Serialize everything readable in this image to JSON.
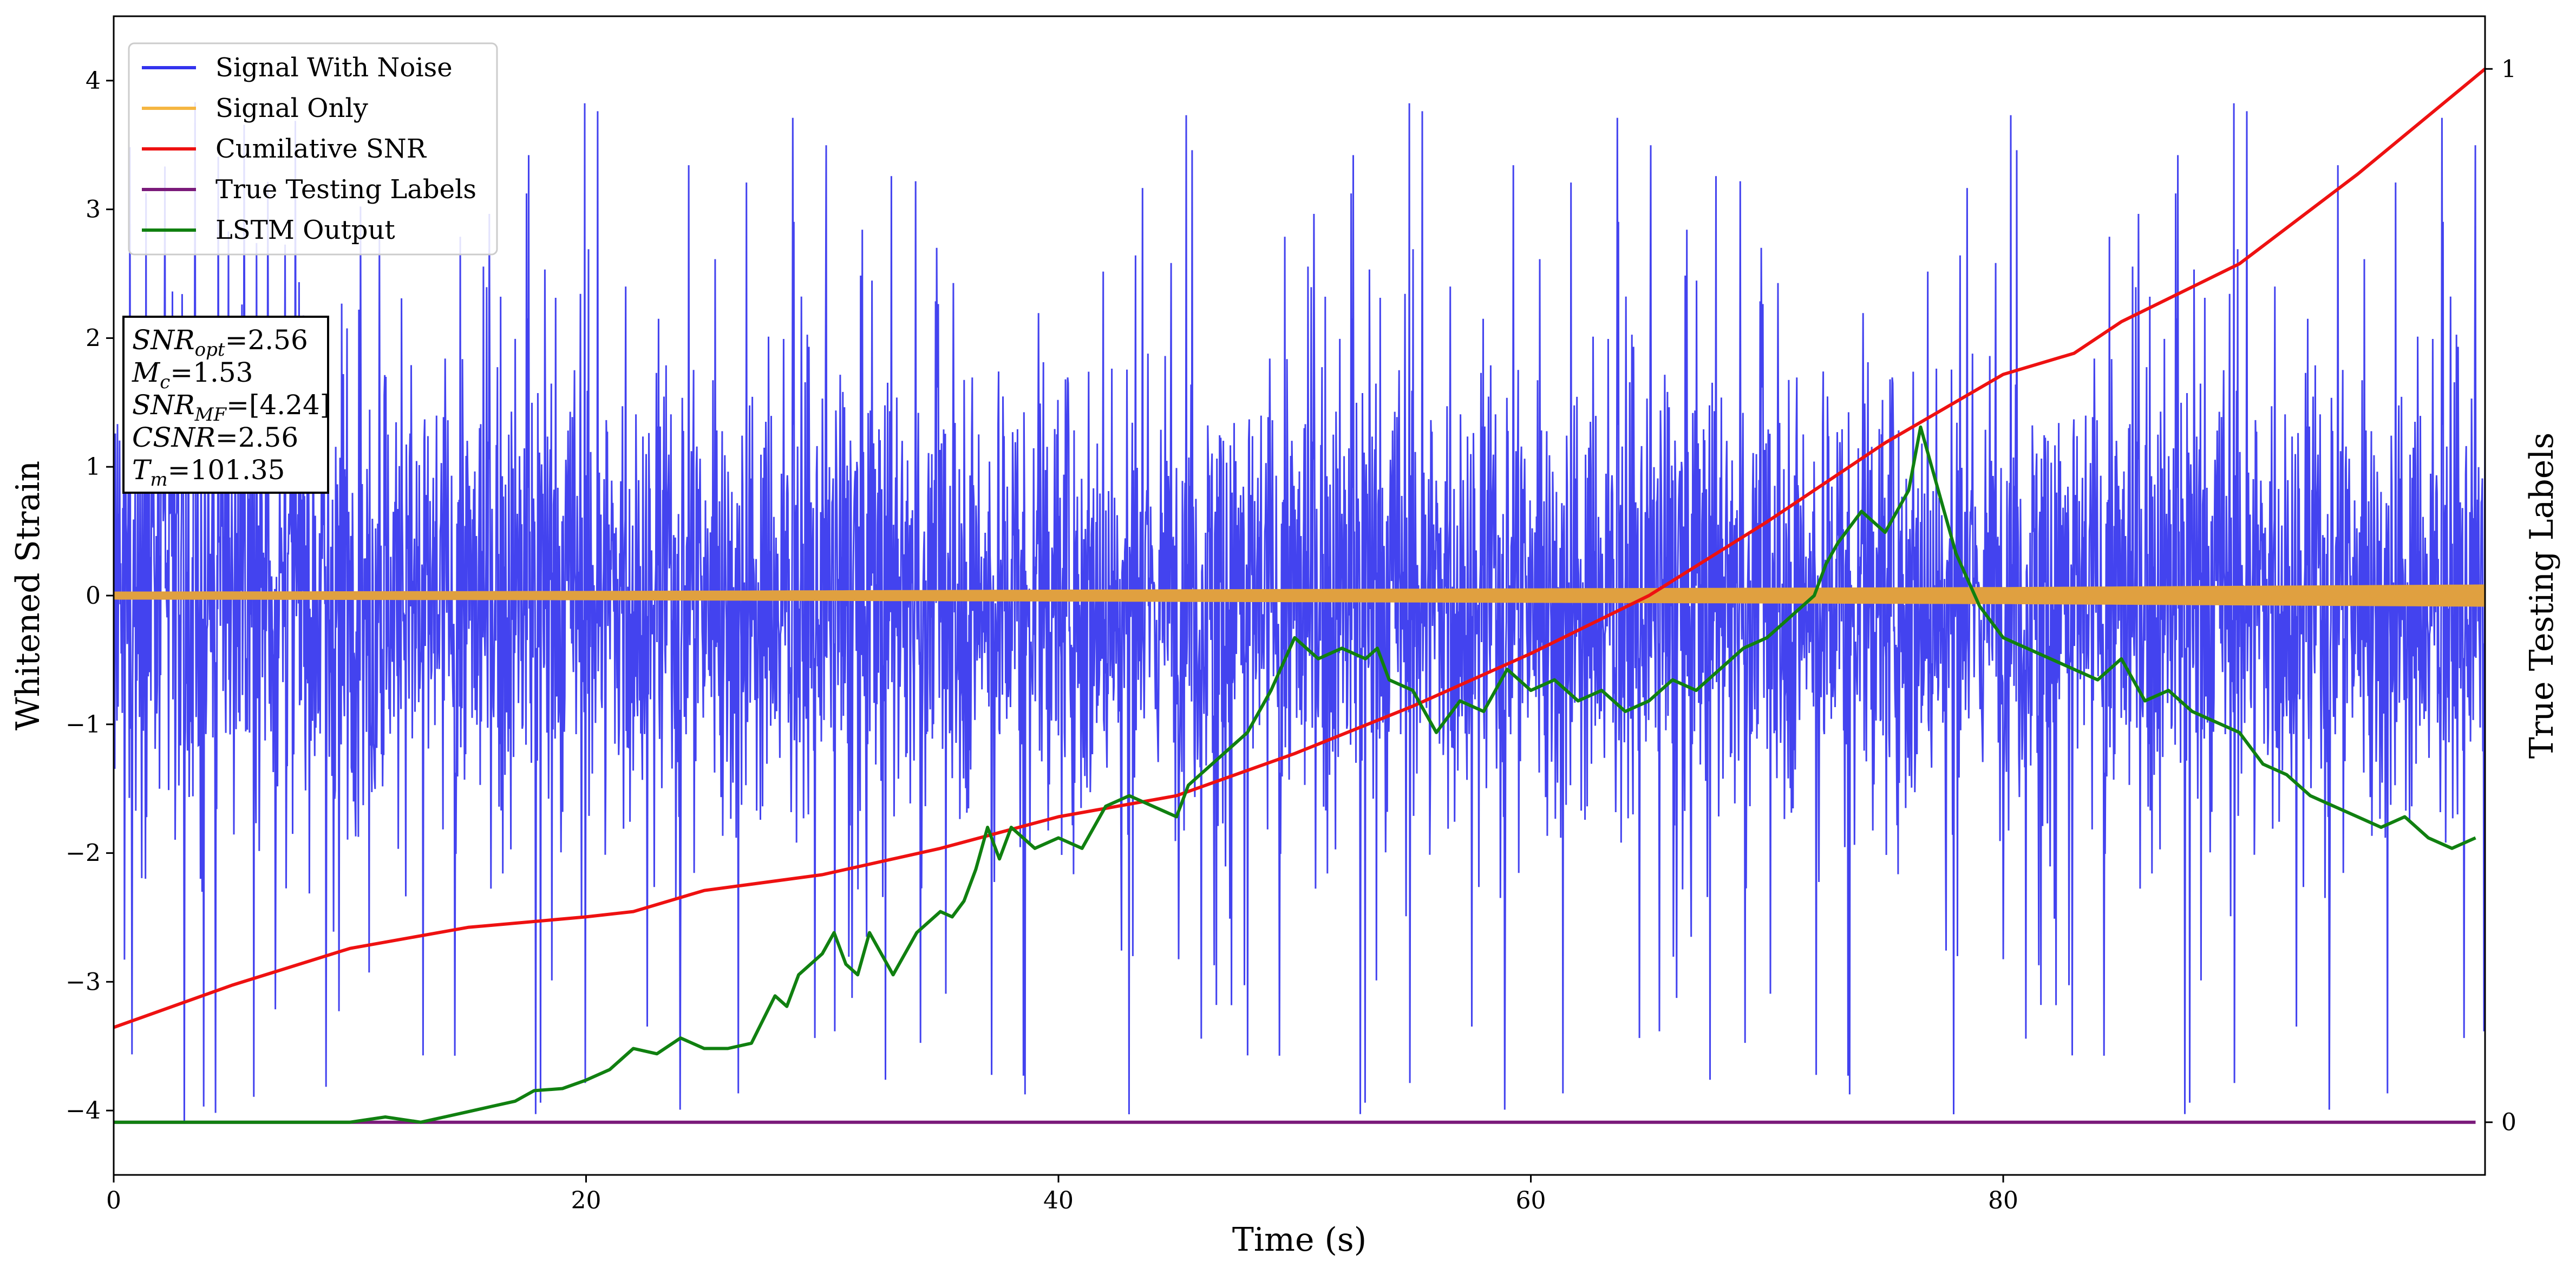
{
  "chart_data": {
    "type": "line",
    "title": "",
    "xlabel": "Time (s)",
    "ylabel": "Whitened Strain",
    "ylabel_right": "True Testing Labels",
    "xlim": [
      0,
      100.4
    ],
    "ylim": [
      -4.5,
      4.5
    ],
    "ylim_right": [
      -0.05,
      1.05
    ],
    "x_ticks": [
      0,
      20,
      40,
      60,
      80
    ],
    "y_ticks": [
      -4,
      -3,
      -2,
      -1,
      0,
      1,
      2,
      3,
      4
    ],
    "y_ticks_right": [
      0,
      1
    ],
    "grid": false,
    "legend_position": "upper-left",
    "legend": [
      {
        "label": "Signal With Noise",
        "color": "#3333ee"
      },
      {
        "label": "Signal Only",
        "color": "#f5b642"
      },
      {
        "label": "Cumilative SNR",
        "color": "#ee1111"
      },
      {
        "label": "True Testing Labels",
        "color": "#7a1a7a"
      },
      {
        "label": "LSTM Output",
        "color": "#108010"
      }
    ],
    "annotation": {
      "lines": [
        {
          "sym": "SNR",
          "sub": "opt",
          "value": "=2.56"
        },
        {
          "sym": "M",
          "sub": "c",
          "value": "=1.53"
        },
        {
          "sym": "SNR",
          "sub": "MF",
          "value": "=[4.24]"
        },
        {
          "sym": "CSNR",
          "sub": "",
          "value": "=2.56"
        },
        {
          "sym": "T",
          "sub": "m",
          "value": "=101.35"
        }
      ]
    },
    "series": [
      {
        "name": "Signal With Noise",
        "axis": "left",
        "color": "#3333ee",
        "style": "noise",
        "typical_range": [
          -2.0,
          2.0
        ],
        "spike_range": [
          -4.1,
          3.9
        ]
      },
      {
        "name": "Signal Only",
        "axis": "left",
        "color": "#e0a040",
        "style": "band",
        "x": [
          0,
          20,
          40,
          60,
          80,
          100.4
        ],
        "amplitude": [
          0.025,
          0.03,
          0.04,
          0.05,
          0.06,
          0.08
        ]
      },
      {
        "name": "Cumilative SNR",
        "axis": "right",
        "color": "#ee1111",
        "x": [
          0,
          5,
          10,
          15,
          20,
          22,
          25,
          30,
          35,
          40,
          45,
          50,
          55,
          60,
          65,
          70,
          75,
          80,
          83,
          85,
          90,
          95,
          100.4
        ],
        "y": [
          0.09,
          0.13,
          0.165,
          0.185,
          0.195,
          0.2,
          0.22,
          0.235,
          0.26,
          0.29,
          0.31,
          0.35,
          0.395,
          0.445,
          0.5,
          0.57,
          0.645,
          0.71,
          0.73,
          0.76,
          0.815,
          0.9,
          1.0
        ]
      },
      {
        "name": "True Testing Labels",
        "axis": "right",
        "color": "#7a1a7a",
        "x": [
          0,
          100
        ],
        "y": [
          0,
          0
        ]
      },
      {
        "name": "LSTM Output",
        "axis": "right",
        "color": "#108010",
        "x": [
          0,
          10,
          11.5,
          13,
          14,
          15,
          16,
          17,
          17.8,
          19,
          20,
          21,
          22,
          23,
          24,
          25,
          26,
          27,
          28,
          28.5,
          29,
          30,
          30.5,
          31,
          31.5,
          32,
          32.5,
          33,
          34,
          35,
          35.5,
          36,
          36.5,
          37,
          37.5,
          38,
          39,
          40,
          41,
          42,
          43,
          44,
          45,
          45.5,
          46,
          47,
          48,
          49,
          50,
          51,
          52,
          53,
          53.5,
          54,
          55,
          56,
          57,
          58,
          59,
          60,
          61,
          62,
          63,
          64,
          65,
          66,
          67,
          68,
          69,
          70,
          71,
          72,
          72.5,
          73,
          74,
          75,
          76,
          76.5,
          77,
          77.5,
          78,
          79,
          80,
          81,
          82,
          83,
          84,
          85,
          86,
          87,
          88,
          89,
          90,
          91,
          92,
          93,
          94,
          95,
          96,
          97,
          98,
          99,
          100
        ],
        "y": [
          0,
          0,
          0.005,
          0.0,
          0.005,
          0.01,
          0.015,
          0.02,
          0.03,
          0.032,
          0.04,
          0.05,
          0.07,
          0.065,
          0.08,
          0.07,
          0.07,
          0.075,
          0.12,
          0.11,
          0.14,
          0.16,
          0.18,
          0.15,
          0.14,
          0.18,
          0.16,
          0.14,
          0.18,
          0.2,
          0.195,
          0.21,
          0.24,
          0.28,
          0.25,
          0.28,
          0.26,
          0.27,
          0.26,
          0.3,
          0.31,
          0.3,
          0.29,
          0.32,
          0.33,
          0.35,
          0.37,
          0.41,
          0.46,
          0.44,
          0.45,
          0.44,
          0.45,
          0.42,
          0.41,
          0.37,
          0.4,
          0.39,
          0.43,
          0.41,
          0.42,
          0.4,
          0.41,
          0.39,
          0.4,
          0.42,
          0.41,
          0.43,
          0.45,
          0.46,
          0.48,
          0.5,
          0.53,
          0.55,
          0.58,
          0.56,
          0.6,
          0.66,
          0.62,
          0.58,
          0.54,
          0.49,
          0.46,
          0.45,
          0.44,
          0.43,
          0.42,
          0.44,
          0.4,
          0.41,
          0.39,
          0.38,
          0.37,
          0.34,
          0.33,
          0.31,
          0.3,
          0.29,
          0.28,
          0.29,
          0.27,
          0.26,
          0.27
        ]
      }
    ]
  }
}
